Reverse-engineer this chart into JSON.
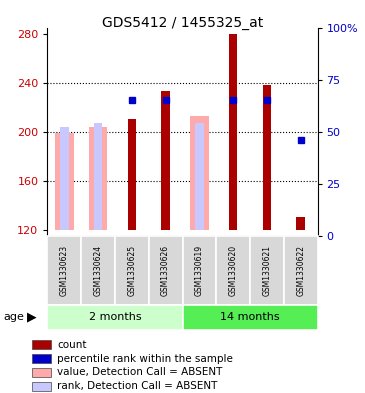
{
  "title": "GDS5412 / 1455325_at",
  "samples": [
    "GSM1330623",
    "GSM1330624",
    "GSM1330625",
    "GSM1330626",
    "GSM1330619",
    "GSM1330620",
    "GSM1330621",
    "GSM1330622"
  ],
  "ylim_left": [
    115,
    285
  ],
  "ylim_right": [
    0,
    100
  ],
  "yticks_left": [
    120,
    160,
    200,
    240,
    280
  ],
  "yticks_right": [
    0,
    25,
    50,
    75,
    100
  ],
  "ytick_labels_right": [
    "0",
    "25",
    "50",
    "75",
    "100%"
  ],
  "count_values": [
    null,
    null,
    210,
    233,
    null,
    280,
    238,
    130
  ],
  "percentile_values": [
    null,
    null,
    65,
    65,
    null,
    65,
    65,
    46
  ],
  "value_absent": [
    199,
    204,
    null,
    null,
    213,
    null,
    null,
    null
  ],
  "rank_absent": [
    204,
    207,
    null,
    null,
    207,
    null,
    null,
    null
  ],
  "count_color": "#aa0000",
  "percentile_color": "#0000cc",
  "value_absent_color": "#ffaaaa",
  "rank_absent_color": "#c8c8ff",
  "baseline": 120,
  "gridlines": [
    160,
    200,
    240
  ],
  "group_defs": [
    {
      "start": 0,
      "end": 3,
      "label": "2 months",
      "color": "#ccffcc"
    },
    {
      "start": 4,
      "end": 7,
      "label": "14 months",
      "color": "#55ee55"
    }
  ],
  "legend_items": [
    {
      "color": "#aa0000",
      "label": "count"
    },
    {
      "color": "#0000cc",
      "label": "percentile rank within the sample"
    },
    {
      "color": "#ffaaaa",
      "label": "value, Detection Call = ABSENT"
    },
    {
      "color": "#c8c8ff",
      "label": "rank, Detection Call = ABSENT"
    }
  ]
}
